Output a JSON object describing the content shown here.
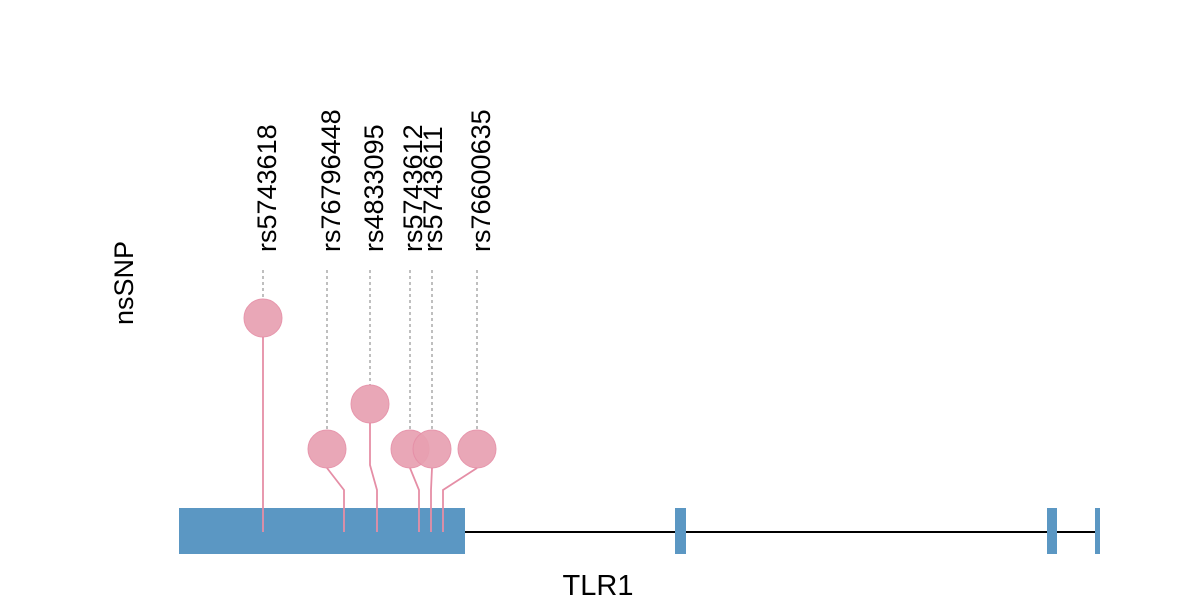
{
  "chart_data": {
    "type": "lollipop",
    "track_label": "nsSNP",
    "gene": "TLR1",
    "colors": {
      "exon": "#5b97c3",
      "lollipop": "#e8a0b1",
      "stem": "#e58ea6",
      "connector": "#aaaaaa",
      "intron": "#000000"
    },
    "snps": [
      {
        "id": "rs5743618",
        "height": 3
      },
      {
        "id": "rs76796448",
        "height": 1
      },
      {
        "id": "rs4833095",
        "height": 2
      },
      {
        "id": "rs5743612",
        "height": 1
      },
      {
        "id": "rs5743611",
        "height": 1
      },
      {
        "id": "rs76600635",
        "height": 1
      }
    ]
  }
}
